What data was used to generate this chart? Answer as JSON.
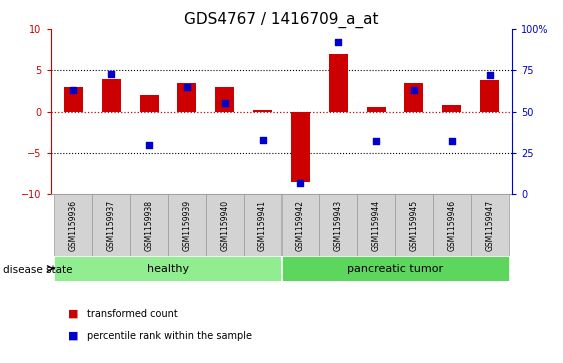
{
  "title": "GDS4767 / 1416709_a_at",
  "samples": [
    "GSM1159936",
    "GSM1159937",
    "GSM1159938",
    "GSM1159939",
    "GSM1159940",
    "GSM1159941",
    "GSM1159942",
    "GSM1159943",
    "GSM1159944",
    "GSM1159945",
    "GSM1159946",
    "GSM1159947"
  ],
  "transformed_count": [
    3.0,
    4.0,
    2.0,
    3.5,
    3.0,
    0.2,
    -8.5,
    7.0,
    0.5,
    3.5,
    0.8,
    3.8
  ],
  "percentile_rank": [
    63,
    73,
    30,
    65,
    55,
    33,
    7,
    92,
    32,
    63,
    32,
    72
  ],
  "groups": [
    {
      "label": "healthy",
      "start": 0,
      "end": 5,
      "color": "#90EE90"
    },
    {
      "label": "pancreatic tumor",
      "start": 6,
      "end": 11,
      "color": "#5CD65C"
    }
  ],
  "ylim_left": [
    -10,
    10
  ],
  "ylim_right": [
    0,
    100
  ],
  "yticks_left": [
    -10,
    -5,
    0,
    5,
    10
  ],
  "yticks_right": [
    0,
    25,
    50,
    75,
    100
  ],
  "bar_color": "#CC0000",
  "dot_color": "#0000CC",
  "hline_color": "#CC0000",
  "grid_color": "#000000",
  "disease_state_label": "disease state",
  "legend_items": [
    {
      "label": "transformed count",
      "color": "#CC0000"
    },
    {
      "label": "percentile rank within the sample",
      "color": "#0000CC"
    }
  ],
  "bg_color": "#FFFFFF",
  "tick_label_color_left": "#CC0000",
  "tick_label_color_right": "#0000CC",
  "title_fontsize": 11,
  "tick_fontsize": 7,
  "xlabel_box_color": "#D3D3D3",
  "xlabel_box_edge": "#999999"
}
